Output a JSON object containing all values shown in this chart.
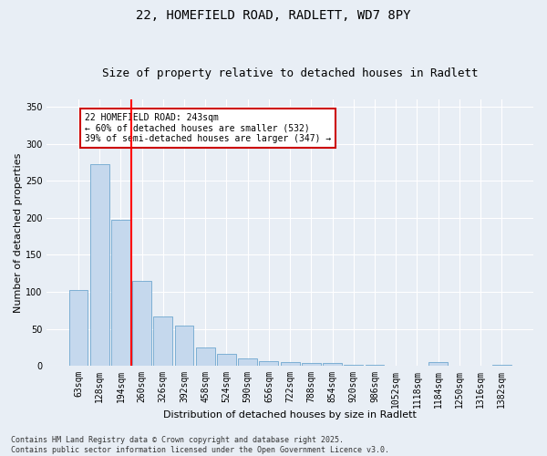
{
  "title1": "22, HOMEFIELD ROAD, RADLETT, WD7 8PY",
  "title2": "Size of property relative to detached houses in Radlett",
  "xlabel": "Distribution of detached houses by size in Radlett",
  "ylabel": "Number of detached properties",
  "categories": [
    "63sqm",
    "128sqm",
    "194sqm",
    "260sqm",
    "326sqm",
    "392sqm",
    "458sqm",
    "524sqm",
    "590sqm",
    "656sqm",
    "722sqm",
    "788sqm",
    "854sqm",
    "920sqm",
    "986sqm",
    "1052sqm",
    "1118sqm",
    "1184sqm",
    "1250sqm",
    "1316sqm",
    "1382sqm"
  ],
  "values": [
    102,
    272,
    197,
    115,
    67,
    55,
    25,
    16,
    10,
    7,
    5,
    4,
    4,
    2,
    1,
    0,
    0,
    5,
    0,
    0,
    1
  ],
  "bar_color": "#c5d8ed",
  "bar_edge_color": "#5a9bc9",
  "background_color": "#e8eef5",
  "grid_color": "#ffffff",
  "red_line_x": 2.5,
  "annotation_text": "22 HOMEFIELD ROAD: 243sqm\n← 60% of detached houses are smaller (532)\n39% of semi-detached houses are larger (347) →",
  "annotation_box_color": "#ffffff",
  "annotation_box_edge_color": "#cc0000",
  "ylim": [
    0,
    360
  ],
  "yticks": [
    0,
    50,
    100,
    150,
    200,
    250,
    300,
    350
  ],
  "footer_text": "Contains HM Land Registry data © Crown copyright and database right 2025.\nContains public sector information licensed under the Open Government Licence v3.0.",
  "title1_fontsize": 10,
  "title2_fontsize": 9,
  "axis_label_fontsize": 8,
  "tick_fontsize": 7,
  "annotation_fontsize": 7,
  "footer_fontsize": 6
}
